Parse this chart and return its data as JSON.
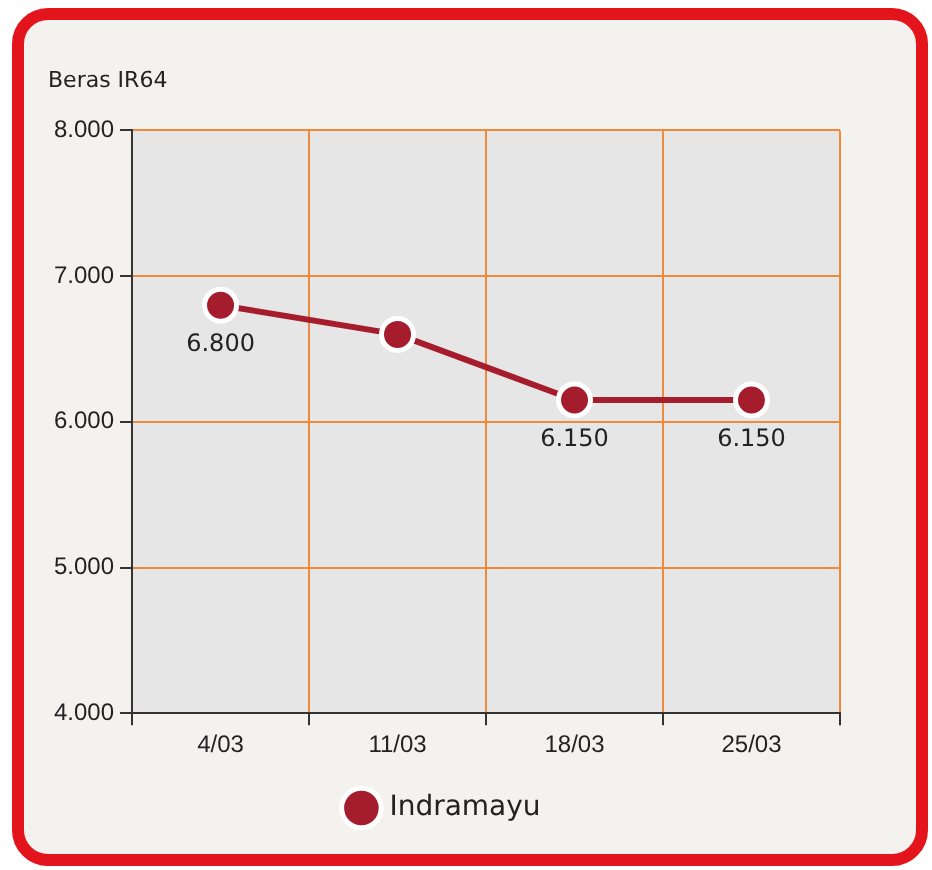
{
  "chart_data": {
    "type": "line",
    "title": "Beras IR64",
    "categories": [
      "4/03",
      "11/03",
      "18/03",
      "25/03"
    ],
    "series": [
      {
        "name": "Indramayu",
        "color": "#a51d2d",
        "values": [
          6800,
          6600,
          6150,
          6150
        ],
        "value_labels": [
          "6.800",
          null,
          "6.150",
          "6.150"
        ]
      }
    ],
    "ylim": [
      4000,
      8000
    ],
    "yticks": [
      {
        "value": 4000,
        "label": "4.000"
      },
      {
        "value": 5000,
        "label": "5.000"
      },
      {
        "value": 6000,
        "label": "6.000"
      },
      {
        "value": 7000,
        "label": "7.000"
      },
      {
        "value": 8000,
        "label": "8.000"
      }
    ],
    "grid": true,
    "legend": "bottom",
    "marker": "circle",
    "line_style": "solid"
  }
}
